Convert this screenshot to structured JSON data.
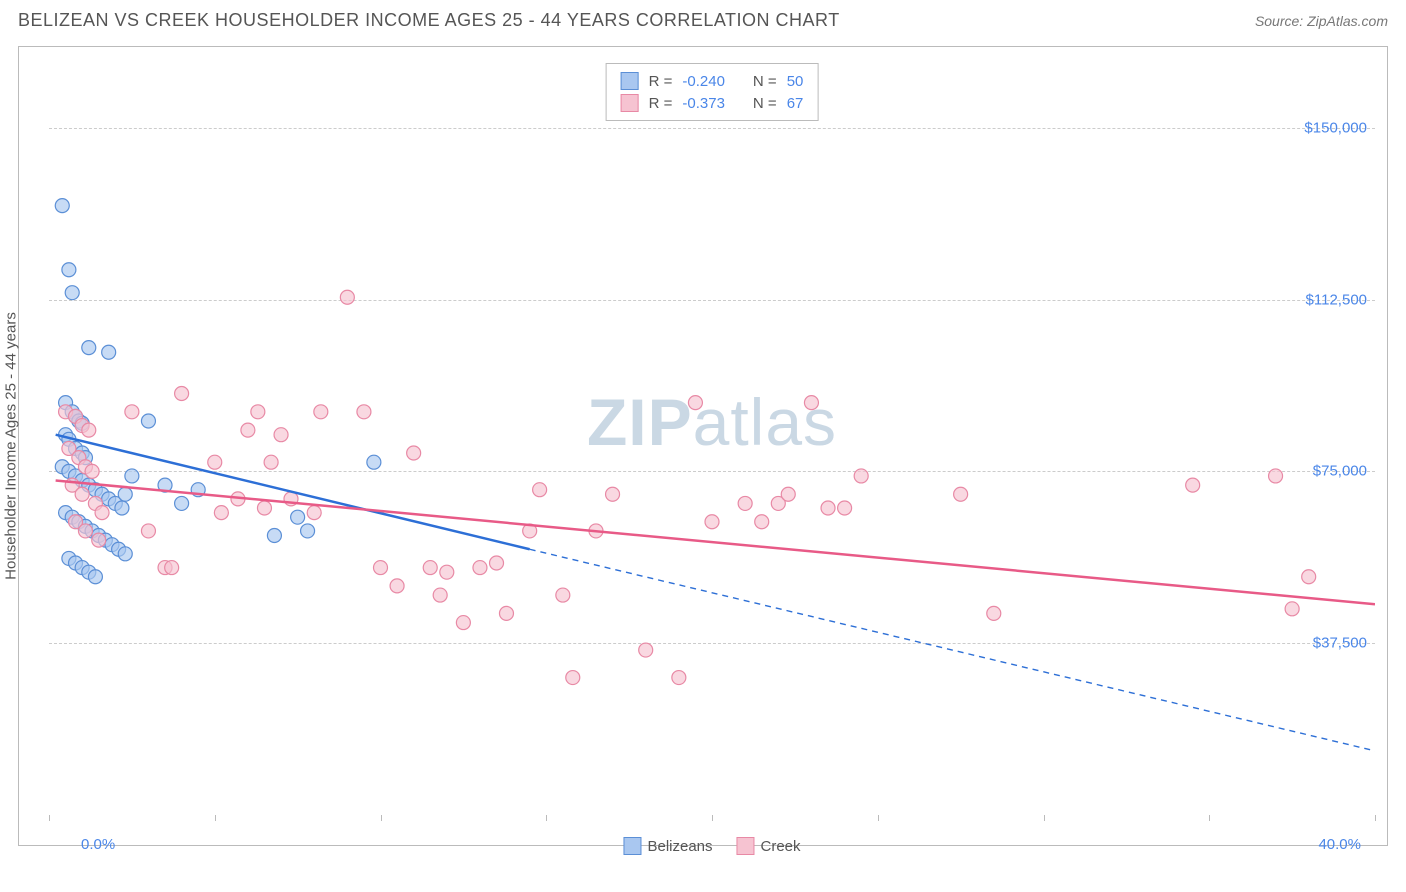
{
  "title": "BELIZEAN VS CREEK HOUSEHOLDER INCOME AGES 25 - 44 YEARS CORRELATION CHART",
  "source": "Source: ZipAtlas.com",
  "y_axis_label": "Householder Income Ages 25 - 44 years",
  "x_axis": {
    "min_label": "0.0%",
    "max_label": "40.0%",
    "xlim": [
      0,
      40
    ],
    "ticks": [
      0,
      5,
      10,
      15,
      20,
      25,
      30,
      35,
      40
    ]
  },
  "y_axis": {
    "ylim": [
      0,
      165000
    ],
    "ticks": [
      {
        "v": 37500,
        "label": "$37,500"
      },
      {
        "v": 75000,
        "label": "$75,000"
      },
      {
        "v": 112500,
        "label": "$112,500"
      },
      {
        "v": 150000,
        "label": "$150,000"
      }
    ]
  },
  "chart": {
    "background_color": "#ffffff",
    "grid_color": "#cccccc",
    "axis_color": "#bbbbbb",
    "marker_radius": 7,
    "marker_stroke_width": 1.2,
    "line_width": 2.5,
    "dash_pattern": "6,5"
  },
  "watermark": {
    "bold": "ZIP",
    "rest": "atlas"
  },
  "legend_top": [
    {
      "swatch_fill": "#a9c7f0",
      "swatch_stroke": "#5b8fd6",
      "R_label": "R =",
      "R": "-0.240",
      "N_label": "N =",
      "N": "50"
    },
    {
      "swatch_fill": "#f6c3d1",
      "swatch_stroke": "#e889a5",
      "R_label": "R =",
      "R": "-0.373",
      "N_label": "N =",
      "N": "67"
    }
  ],
  "legend_bottom": [
    {
      "label": "Belizeans",
      "fill": "#a9c7f0",
      "stroke": "#5b8fd6"
    },
    {
      "label": "Creek",
      "fill": "#f6c3d1",
      "stroke": "#e889a5"
    }
  ],
  "series": [
    {
      "name": "Belizeans",
      "point_fill": "rgba(169,199,240,0.65)",
      "point_stroke": "#5b8fd6",
      "line_color": "#2d6fd6",
      "trend_solid": {
        "x1": 0.2,
        "y1": 83000,
        "x2": 14.5,
        "y2": 58000
      },
      "trend_dashed": {
        "x1": 14.5,
        "y1": 58000,
        "x2": 40,
        "y2": 14000
      },
      "points": [
        [
          0.4,
          133000
        ],
        [
          0.6,
          119000
        ],
        [
          0.7,
          114000
        ],
        [
          1.2,
          102000
        ],
        [
          1.8,
          101000
        ],
        [
          0.5,
          90000
        ],
        [
          0.7,
          88000
        ],
        [
          0.8,
          87000
        ],
        [
          0.9,
          86000
        ],
        [
          1.0,
          85500
        ],
        [
          0.5,
          83000
        ],
        [
          0.6,
          82000
        ],
        [
          0.8,
          80000
        ],
        [
          1.0,
          79000
        ],
        [
          1.1,
          78000
        ],
        [
          0.4,
          76000
        ],
        [
          0.6,
          75000
        ],
        [
          0.8,
          74000
        ],
        [
          1.0,
          73000
        ],
        [
          1.2,
          72000
        ],
        [
          1.4,
          71000
        ],
        [
          1.6,
          70000
        ],
        [
          1.8,
          69000
        ],
        [
          2.0,
          68000
        ],
        [
          2.2,
          67000
        ],
        [
          0.5,
          66000
        ],
        [
          0.7,
          65000
        ],
        [
          0.9,
          64000
        ],
        [
          1.1,
          63000
        ],
        [
          1.3,
          62000
        ],
        [
          1.5,
          61000
        ],
        [
          1.7,
          60000
        ],
        [
          1.9,
          59000
        ],
        [
          2.1,
          58000
        ],
        [
          2.3,
          57000
        ],
        [
          0.6,
          56000
        ],
        [
          0.8,
          55000
        ],
        [
          1.0,
          54000
        ],
        [
          1.2,
          53000
        ],
        [
          1.4,
          52000
        ],
        [
          2.5,
          74000
        ],
        [
          3.0,
          86000
        ],
        [
          3.5,
          72000
        ],
        [
          4.0,
          68000
        ],
        [
          4.5,
          71000
        ],
        [
          2.3,
          70000
        ],
        [
          6.8,
          61000
        ],
        [
          7.8,
          62000
        ],
        [
          9.8,
          77000
        ],
        [
          7.5,
          65000
        ]
      ]
    },
    {
      "name": "Creek",
      "point_fill": "rgba(246,195,209,0.65)",
      "point_stroke": "#e889a5",
      "line_color": "#e85a87",
      "trend_solid": {
        "x1": 0.2,
        "y1": 73000,
        "x2": 40,
        "y2": 46000
      },
      "trend_dashed": null,
      "points": [
        [
          0.5,
          88000
        ],
        [
          0.8,
          87000
        ],
        [
          1.0,
          85000
        ],
        [
          1.2,
          84000
        ],
        [
          0.6,
          80000
        ],
        [
          0.9,
          78000
        ],
        [
          1.1,
          76000
        ],
        [
          1.3,
          75000
        ],
        [
          0.7,
          72000
        ],
        [
          1.0,
          70000
        ],
        [
          1.4,
          68000
        ],
        [
          1.6,
          66000
        ],
        [
          0.8,
          64000
        ],
        [
          1.1,
          62000
        ],
        [
          1.5,
          60000
        ],
        [
          2.5,
          88000
        ],
        [
          3.0,
          62000
        ],
        [
          3.5,
          54000
        ],
        [
          3.7,
          54000
        ],
        [
          4.0,
          92000
        ],
        [
          5.2,
          66000
        ],
        [
          5.7,
          69000
        ],
        [
          6.0,
          84000
        ],
        [
          6.3,
          88000
        ],
        [
          6.5,
          67000
        ],
        [
          7.0,
          83000
        ],
        [
          7.3,
          69000
        ],
        [
          8.0,
          66000
        ],
        [
          8.2,
          88000
        ],
        [
          9.0,
          113000
        ],
        [
          9.5,
          88000
        ],
        [
          10.0,
          54000
        ],
        [
          10.5,
          50000
        ],
        [
          11.0,
          79000
        ],
        [
          11.5,
          54000
        ],
        [
          11.8,
          48000
        ],
        [
          12.5,
          42000
        ],
        [
          13.0,
          54000
        ],
        [
          13.8,
          44000
        ],
        [
          14.5,
          62000
        ],
        [
          14.8,
          71000
        ],
        [
          15.5,
          48000
        ],
        [
          15.8,
          30000
        ],
        [
          16.5,
          62000
        ],
        [
          17.0,
          70000
        ],
        [
          18.0,
          36000
        ],
        [
          19.0,
          30000
        ],
        [
          19.5,
          90000
        ],
        [
          20.0,
          64000
        ],
        [
          21.0,
          68000
        ],
        [
          21.5,
          64000
        ],
        [
          22.0,
          68000
        ],
        [
          22.3,
          70000
        ],
        [
          23.0,
          90000
        ],
        [
          23.5,
          67000
        ],
        [
          24.0,
          67000
        ],
        [
          24.5,
          74000
        ],
        [
          27.5,
          70000
        ],
        [
          28.5,
          44000
        ],
        [
          34.5,
          72000
        ],
        [
          37.0,
          74000
        ],
        [
          37.5,
          45000
        ],
        [
          38.0,
          52000
        ],
        [
          12.0,
          53000
        ],
        [
          13.5,
          55000
        ],
        [
          5.0,
          77000
        ],
        [
          6.7,
          77000
        ]
      ]
    }
  ]
}
